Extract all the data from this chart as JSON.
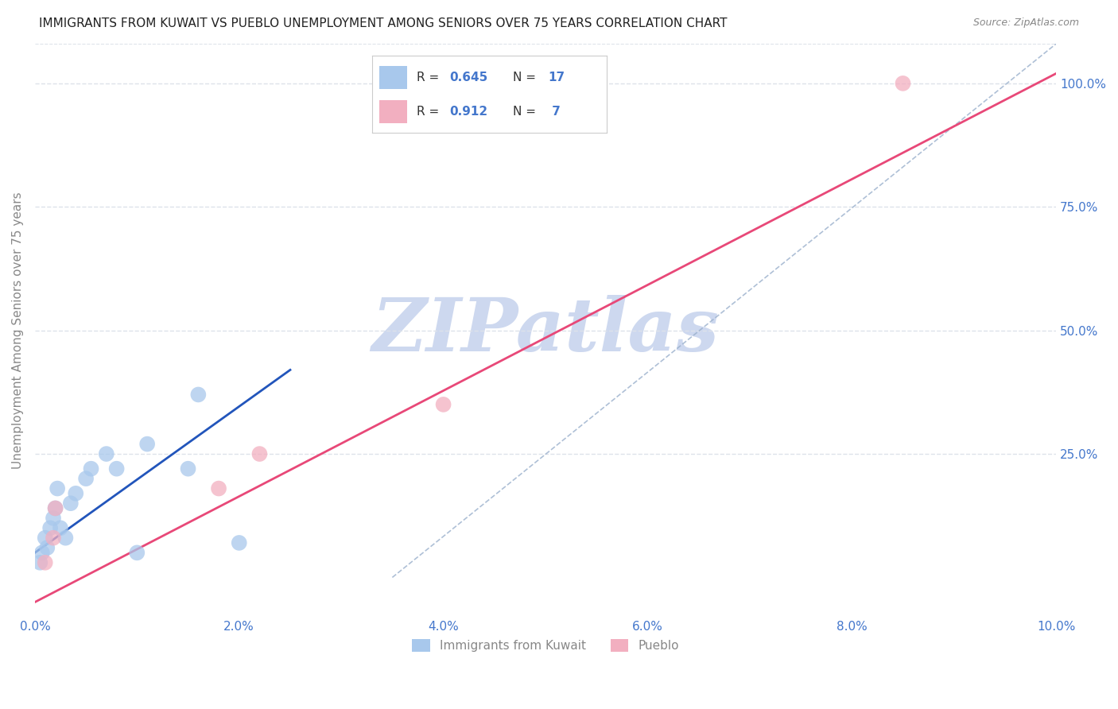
{
  "title": "IMMIGRANTS FROM KUWAIT VS PUEBLO UNEMPLOYMENT AMONG SENIORS OVER 75 YEARS CORRELATION CHART",
  "source": "Source: ZipAtlas.com",
  "ylabel_left": "Unemployment Among Seniors over 75 years",
  "xlabel_values": [
    0.0,
    2.0,
    4.0,
    6.0,
    8.0,
    10.0
  ],
  "ylabel_right_values": [
    25.0,
    50.0,
    75.0,
    100.0
  ],
  "xmin": 0.0,
  "xmax": 10.0,
  "ymin": -8.0,
  "ymax": 108.0,
  "watermark": "ZIPatlas",
  "legend_label1": "Immigrants from Kuwait",
  "legend_label2": "Pueblo",
  "blue_scatter_x": [
    0.05,
    0.07,
    0.1,
    0.12,
    0.15,
    0.18,
    0.2,
    0.22,
    0.25,
    0.3,
    0.35,
    0.4,
    0.5,
    0.55,
    0.7,
    0.8,
    1.0,
    1.1,
    1.5,
    1.6,
    2.0
  ],
  "blue_scatter_y": [
    3.0,
    5.0,
    8.0,
    6.0,
    10.0,
    12.0,
    14.0,
    18.0,
    10.0,
    8.0,
    15.0,
    17.0,
    20.0,
    22.0,
    25.0,
    22.0,
    5.0,
    27.0,
    22.0,
    37.0,
    7.0
  ],
  "pink_scatter_x": [
    0.1,
    0.18,
    0.2,
    1.8,
    2.2,
    4.0,
    8.5
  ],
  "pink_scatter_y": [
    3.0,
    8.0,
    14.0,
    18.0,
    25.0,
    35.0,
    100.0
  ],
  "blue_line_x": [
    0.0,
    2.5
  ],
  "blue_line_y": [
    5.0,
    42.0
  ],
  "pink_line_x": [
    0.0,
    10.0
  ],
  "pink_line_y": [
    -5.0,
    102.0
  ],
  "ref_line_x": [
    3.5,
    10.0
  ],
  "ref_line_y": [
    0.0,
    108.0
  ],
  "blue_scatter_color": "#a8c8ec",
  "pink_scatter_color": "#f2afc0",
  "blue_line_color": "#2255bb",
  "pink_line_color": "#e84878",
  "ref_line_color": "#9ab0cc",
  "watermark_color": "#cdd8ef",
  "title_color": "#222222",
  "axis_label_color": "#888888",
  "right_axis_color": "#4477cc",
  "bottom_tick_color": "#4477cc",
  "grid_color": "#dde2ea",
  "background_color": "#ffffff",
  "legend_border_color": "#cccccc",
  "legend_r_color": "#4477cc"
}
